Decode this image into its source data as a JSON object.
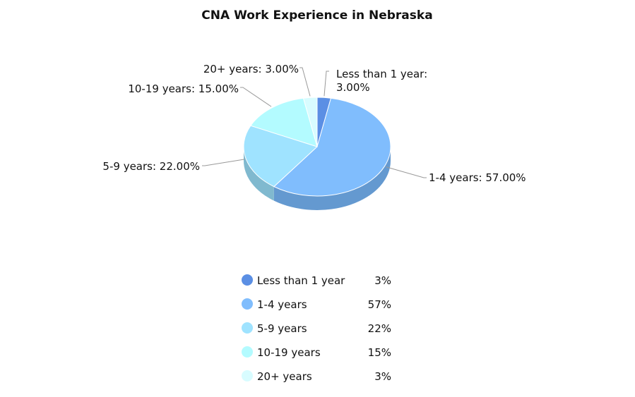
{
  "chart_data": {
    "type": "pie",
    "title": "CNA Work Experience in Nebraska",
    "slices": [
      {
        "label": "Less than 1 year",
        "value": 3.0,
        "pie_label": "Less than 1 year: 3.00%",
        "legend_value": "3%",
        "color": "#5b8fe4",
        "side": "#4a76bd"
      },
      {
        "label": "1-4 years",
        "value": 57.0,
        "pie_label": "1-4 years: 57.00%",
        "legend_value": "57%",
        "color": "#80bdfd",
        "side": "#6499d0"
      },
      {
        "label": "5-9 years",
        "value": 22.0,
        "pie_label": "5-9 years: 22.00%",
        "legend_value": "22%",
        "color": "#9fe3ff",
        "side": "#80b9cf"
      },
      {
        "label": "10-19 years",
        "value": 15.0,
        "pie_label": "10-19 years: 15.00%",
        "legend_value": "15%",
        "color": "#b3fbff",
        "side": "#92ccd0"
      },
      {
        "label": "20+ years",
        "value": 3.0,
        "pie_label": "20+ years: 3.00%",
        "legend_value": "3%",
        "color": "#d8fcff",
        "side": "#b0cdd0"
      }
    ]
  }
}
